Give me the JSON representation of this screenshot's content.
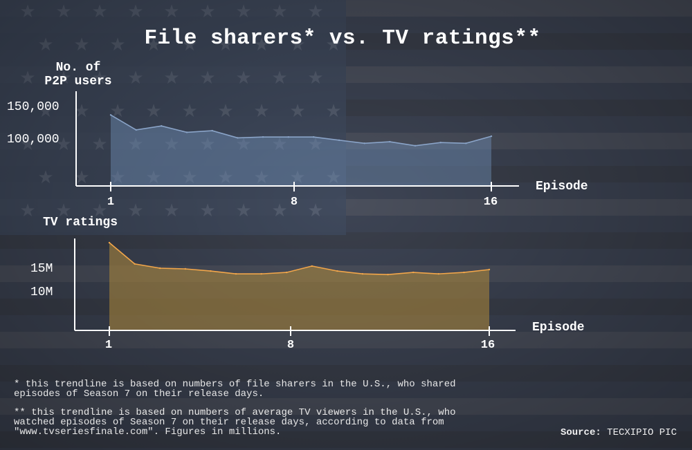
{
  "title": "File sharers* vs. TV ratings**",
  "colors": {
    "p2p_line": "#8aa4c8",
    "p2p_fill": "#6f8db5",
    "tv_line": "#f2a64a",
    "tv_fill": "#b08a3a",
    "axis": "#ffffff"
  },
  "notes": {
    "p2p": "* this trendline is based on numbers of file sharers in the U.S., who shared\nepisodes of Season 7 on their release days.",
    "tv": "** this trendline is based on numbers of average TV viewers in the U.S., who\nwatched episodes of Season 7 on their release days, according to data from\n\"www.tvseriesfinale.com\". Figures in millions."
  },
  "source": {
    "label": "Source:",
    "value": "TECXIPIO PIC"
  },
  "chart_data": [
    {
      "type": "area",
      "ylabel": "No. of\nP2P users",
      "ylabel_lines": [
        "No. of",
        "P2P users"
      ],
      "xlabel": "Episode",
      "x_ticks": [
        "1",
        "8",
        "16"
      ],
      "y_ticks": [
        "150,000",
        "100,000"
      ],
      "ylim": [
        30000,
        150000
      ],
      "xlim": [
        1,
        16
      ],
      "x": [
        1,
        2,
        3,
        4,
        5,
        6,
        7,
        8,
        9,
        10,
        11,
        12,
        13,
        14,
        15,
        16
      ],
      "series": [
        {
          "values": [
            120000,
            101000,
            106000,
            98000,
            100000,
            91000,
            92000,
            92000,
            92000,
            88000,
            84000,
            86000,
            81000,
            85000,
            84000,
            93000
          ]
        }
      ],
      "grid": false
    },
    {
      "type": "area",
      "ylabel": "TV ratings",
      "xlabel": "Episode",
      "x_ticks": [
        "1",
        "8",
        "16"
      ],
      "y_ticks": [
        "15M",
        "10M"
      ],
      "ylim": [
        4,
        17
      ],
      "xlim": [
        1,
        16
      ],
      "x": [
        1,
        2,
        3,
        4,
        5,
        6,
        7,
        8,
        9,
        10,
        11,
        12,
        13,
        14,
        15,
        16
      ],
      "series": [
        {
          "values": [
            16.4,
            13.4,
            12.8,
            12.7,
            12.4,
            12.0,
            12.0,
            12.2,
            13.1,
            12.4,
            12.0,
            11.9,
            12.2,
            12.0,
            12.2,
            12.6
          ]
        }
      ],
      "grid": false
    }
  ]
}
